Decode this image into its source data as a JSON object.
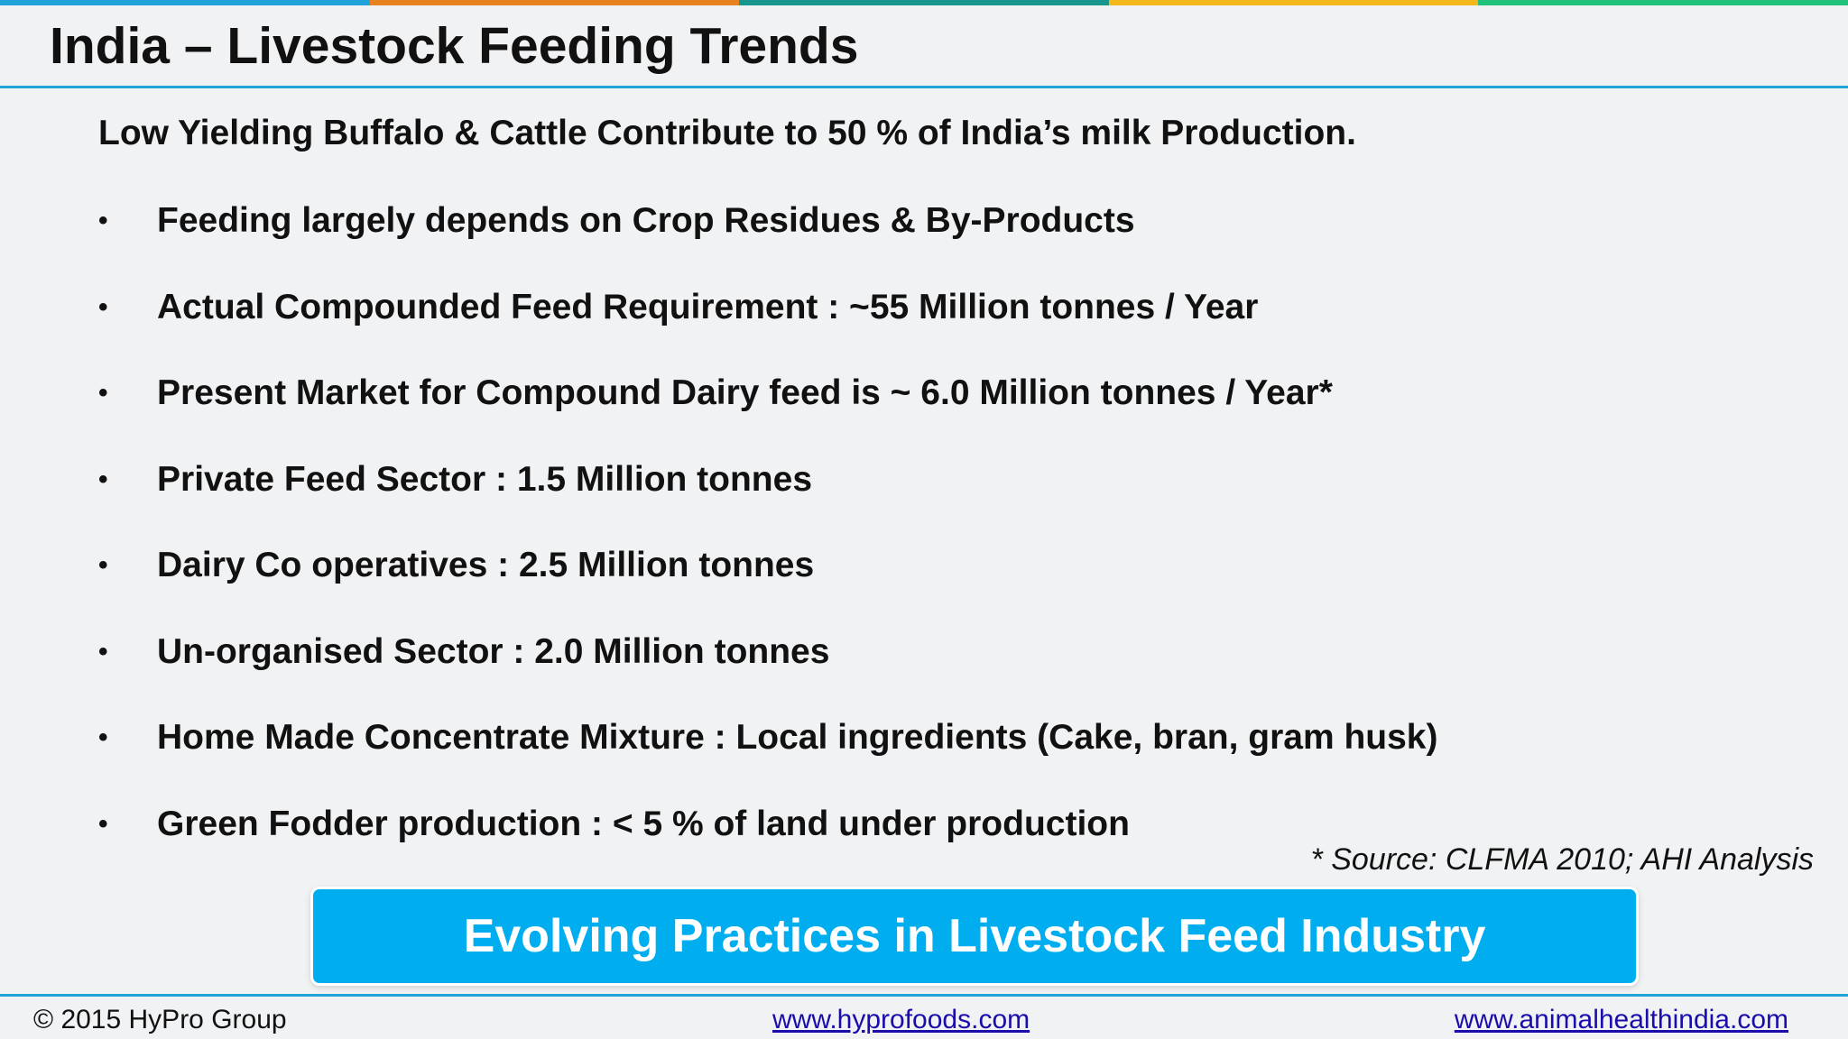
{
  "colors": {
    "top_bar": [
      "#1fa3d9",
      "#e8821e",
      "#17968e",
      "#f4b81a",
      "#22c17a"
    ],
    "accent": "#1fa3d9",
    "banner": "#00aeef"
  },
  "slide": {
    "title": "India – Livestock Feeding Trends",
    "lead": "Low Yielding Buffalo & Cattle Contribute to 50 % of India’s milk Production.",
    "bullets": [
      "Feeding largely depends on Crop Residues & By-Products",
      "Actual Compounded Feed Requirement : ~55 Million tonnes / Year",
      "Present Market for Compound Dairy feed is ~ 6.0 Million tonnes / Year*",
      "Private Feed Sector : 1.5 Million tonnes",
      "Dairy Co operatives : 2.5 Million tonnes",
      "Un-organised Sector : 2.0 Million tonnes",
      "Home Made Concentrate Mixture : Local ingredients (Cake, bran, gram husk)",
      "Green Fodder production : < 5 % of land under production"
    ],
    "bullet_symbol": "•",
    "source": "* Source: CLFMA 2010; AHI Analysis",
    "banner": "Evolving Practices in Livestock Feed Industry"
  },
  "footer": {
    "copyright": "© 2015 HyPro Group",
    "link1": "www.hyprofoods.com",
    "link2": "www.animalhealthindia.com"
  }
}
